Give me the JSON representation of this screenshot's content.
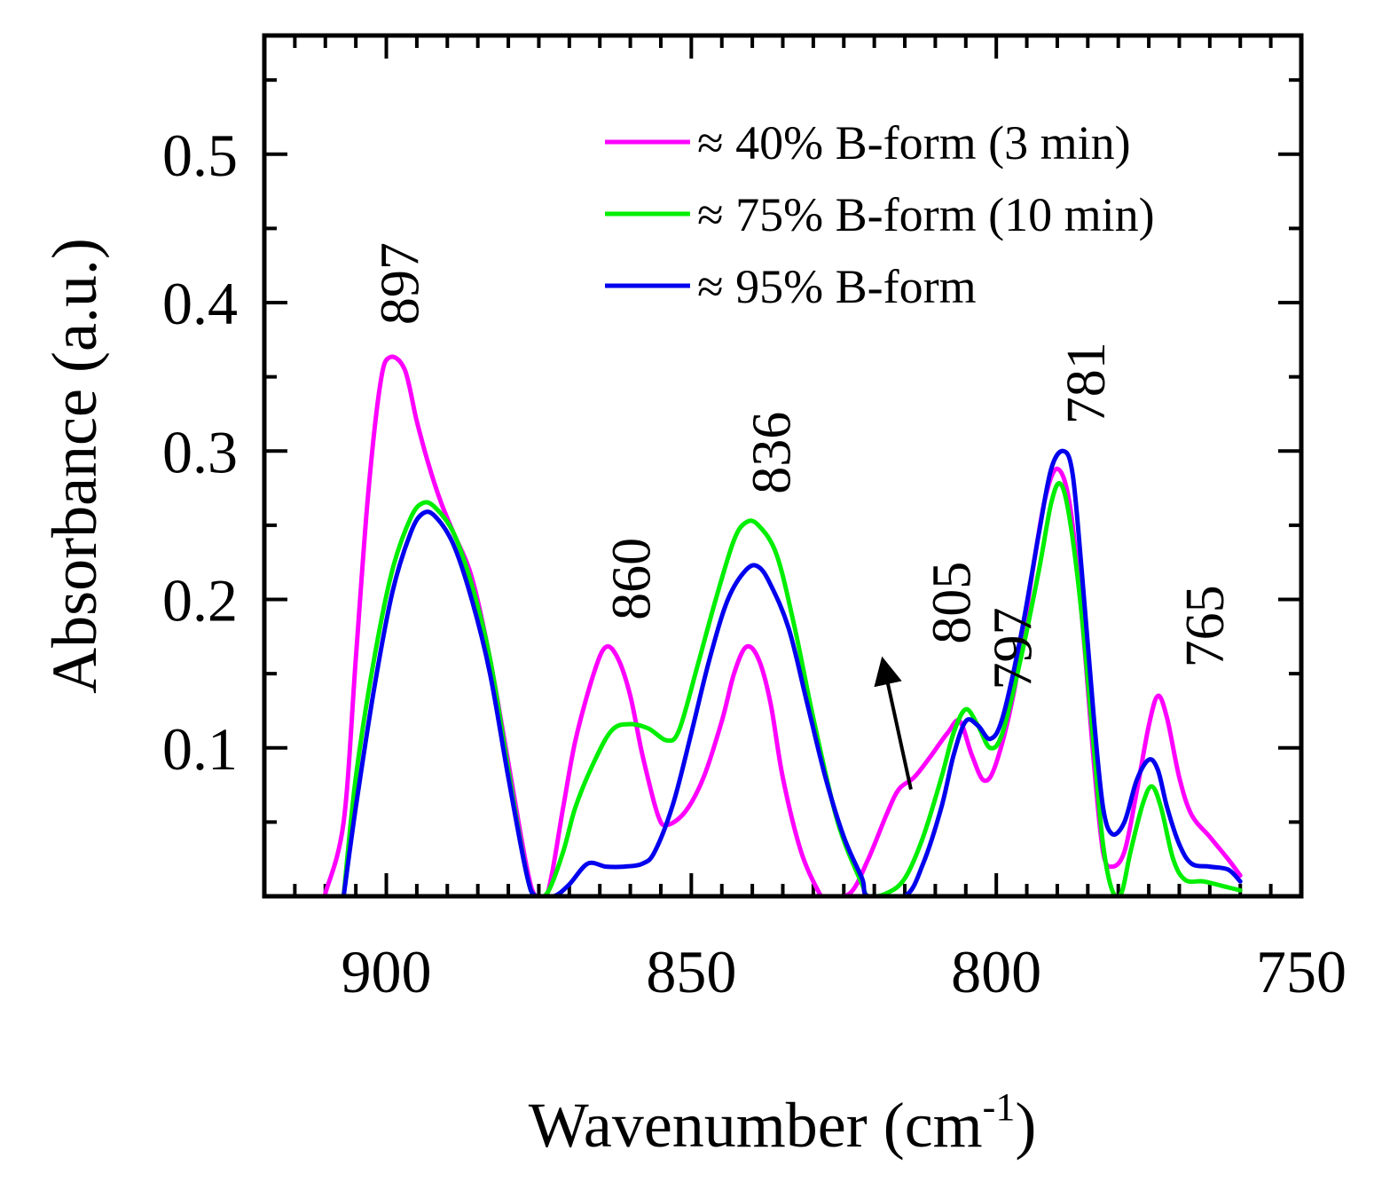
{
  "chart_data": {
    "type": "line",
    "title": "",
    "xlabel": "Wavenumber (cm",
    "xlabel_sup": "-1",
    "xlabel_close": ")",
    "ylabel": "Absorbance (a.u.)",
    "xlim": [
      920,
      750
    ],
    "ylim": [
      0,
      0.58
    ],
    "xticks": [
      900,
      850,
      800,
      750
    ],
    "xtick_labels": [
      "900",
      "850",
      "800",
      "750"
    ],
    "yticks": [
      0.1,
      0.2,
      0.3,
      0.4,
      0.5
    ],
    "ytick_labels": [
      "0.1",
      "0.2",
      "0.3",
      "0.4",
      "0.5"
    ],
    "legend_position": "top-right",
    "series": [
      {
        "name": "≈ 40% B-form (3 min)",
        "color": "#ff00ff",
        "points": [
          [
            910,
            0.002
          ],
          [
            907,
            0.05
          ],
          [
            905,
            0.16
          ],
          [
            903,
            0.27
          ],
          [
            901,
            0.345
          ],
          [
            899.5,
            0.363
          ],
          [
            897,
            0.355
          ],
          [
            895,
            0.32
          ],
          [
            893,
            0.29
          ],
          [
            891,
            0.265
          ],
          [
            889,
            0.245
          ],
          [
            886,
            0.215
          ],
          [
            883,
            0.16
          ],
          [
            880,
            0.09
          ],
          [
            877,
            0.02
          ],
          [
            875.5,
            0.0
          ],
          [
            873.5,
            0.003
          ],
          [
            871,
            0.06
          ],
          [
            869,
            0.105
          ],
          [
            866,
            0.15
          ],
          [
            864,
            0.168
          ],
          [
            862,
            0.16
          ],
          [
            860,
            0.135
          ],
          [
            858,
            0.095
          ],
          [
            855.5,
            0.055
          ],
          [
            854,
            0.048
          ],
          [
            851,
            0.057
          ],
          [
            848,
            0.08
          ],
          [
            845,
            0.118
          ],
          [
            843,
            0.15
          ],
          [
            841,
            0.168
          ],
          [
            839,
            0.16
          ],
          [
            837,
            0.13
          ],
          [
            835,
            0.08
          ],
          [
            832,
            0.03
          ],
          [
            829,
            0.002
          ],
          [
            828,
            0.0
          ],
          [
            824,
            0.002
          ],
          [
            821,
            0.025
          ],
          [
            818,
            0.055
          ],
          [
            816,
            0.072
          ],
          [
            813.5,
            0.08
          ],
          [
            811,
            0.093
          ],
          [
            808,
            0.11
          ],
          [
            806,
            0.118
          ],
          [
            804,
            0.095
          ],
          [
            802,
            0.078
          ],
          [
            800,
            0.09
          ],
          [
            797,
            0.14
          ],
          [
            794,
            0.22
          ],
          [
            792,
            0.268
          ],
          [
            790,
            0.288
          ],
          [
            788,
            0.265
          ],
          [
            786,
            0.19
          ],
          [
            784,
            0.09
          ],
          [
            782.5,
            0.03
          ],
          [
            781,
            0.02
          ],
          [
            779,
            0.03
          ],
          [
            777,
            0.07
          ],
          [
            775,
            0.115
          ],
          [
            773.5,
            0.135
          ],
          [
            772,
            0.12
          ],
          [
            770,
            0.08
          ],
          [
            768,
            0.055
          ],
          [
            765,
            0.04
          ],
          [
            762,
            0.025
          ],
          [
            760,
            0.014
          ]
        ]
      },
      {
        "name": "≈ 75% B-form (10 min)",
        "color": "#00ee00",
        "points": [
          [
            907,
            0.0
          ],
          [
            905,
            0.08
          ],
          [
            902,
            0.16
          ],
          [
            899,
            0.22
          ],
          [
            896,
            0.255
          ],
          [
            894,
            0.265
          ],
          [
            892,
            0.262
          ],
          [
            889,
            0.245
          ],
          [
            886,
            0.21
          ],
          [
            883,
            0.16
          ],
          [
            880,
            0.085
          ],
          [
            877,
            0.015
          ],
          [
            875.5,
            0.0
          ],
          [
            873.5,
            0.003
          ],
          [
            871,
            0.03
          ],
          [
            869,
            0.06
          ],
          [
            866,
            0.09
          ],
          [
            863,
            0.112
          ],
          [
            860,
            0.116
          ],
          [
            857,
            0.113
          ],
          [
            854,
            0.105
          ],
          [
            852,
            0.112
          ],
          [
            849,
            0.155
          ],
          [
            846,
            0.2
          ],
          [
            843,
            0.24
          ],
          [
            841,
            0.252
          ],
          [
            839,
            0.25
          ],
          [
            836,
            0.23
          ],
          [
            833,
            0.18
          ],
          [
            830,
            0.12
          ],
          [
            826,
            0.05
          ],
          [
            822,
            0.008
          ],
          [
            821,
            0.0
          ],
          [
            818,
            0.002
          ],
          [
            815,
            0.012
          ],
          [
            812,
            0.04
          ],
          [
            809,
            0.08
          ],
          [
            807,
            0.11
          ],
          [
            805,
            0.126
          ],
          [
            803,
            0.115
          ],
          [
            801,
            0.1
          ],
          [
            799,
            0.11
          ],
          [
            796,
            0.16
          ],
          [
            793,
            0.22
          ],
          [
            791,
            0.265
          ],
          [
            789.5,
            0.278
          ],
          [
            788,
            0.255
          ],
          [
            786,
            0.19
          ],
          [
            784,
            0.1
          ],
          [
            782.5,
            0.035
          ],
          [
            781,
            0.004
          ],
          [
            779.5,
            0.002
          ],
          [
            778,
            0.03
          ],
          [
            776,
            0.062
          ],
          [
            774.5,
            0.074
          ],
          [
            773,
            0.06
          ],
          [
            771,
            0.025
          ],
          [
            769,
            0.011
          ],
          [
            766,
            0.01
          ],
          [
            762,
            0.006
          ],
          [
            760,
            0.004
          ]
        ]
      },
      {
        "name": "≈ 95% B-form",
        "color": "#0000ee",
        "points": [
          [
            907,
            0.0
          ],
          [
            905,
            0.06
          ],
          [
            902,
            0.14
          ],
          [
            899,
            0.205
          ],
          [
            896,
            0.245
          ],
          [
            894,
            0.258
          ],
          [
            892,
            0.256
          ],
          [
            889,
            0.237
          ],
          [
            886,
            0.2
          ],
          [
            883,
            0.15
          ],
          [
            880,
            0.08
          ],
          [
            877,
            0.015
          ],
          [
            875.5,
            0.0
          ],
          [
            872.5,
            0.0
          ],
          [
            870,
            0.008
          ],
          [
            867,
            0.022
          ],
          [
            864,
            0.02
          ],
          [
            861,
            0.02
          ],
          [
            858,
            0.022
          ],
          [
            856,
            0.03
          ],
          [
            853,
            0.062
          ],
          [
            850,
            0.11
          ],
          [
            847,
            0.16
          ],
          [
            844,
            0.2
          ],
          [
            841,
            0.22
          ],
          [
            839,
            0.222
          ],
          [
            837,
            0.21
          ],
          [
            834,
            0.18
          ],
          [
            831,
            0.13
          ],
          [
            828,
            0.08
          ],
          [
            825,
            0.04
          ],
          [
            822,
            0.012
          ],
          [
            821,
            0.0
          ],
          [
            815,
            0.0
          ],
          [
            812,
            0.022
          ],
          [
            809,
            0.06
          ],
          [
            807,
            0.095
          ],
          [
            805,
            0.118
          ],
          [
            803,
            0.115
          ],
          [
            801,
            0.106
          ],
          [
            799,
            0.12
          ],
          [
            796,
            0.175
          ],
          [
            793,
            0.245
          ],
          [
            791,
            0.288
          ],
          [
            789,
            0.3
          ],
          [
            787.5,
            0.285
          ],
          [
            786,
            0.22
          ],
          [
            784,
            0.12
          ],
          [
            782.5,
            0.06
          ],
          [
            781,
            0.042
          ],
          [
            779,
            0.05
          ],
          [
            777,
            0.078
          ],
          [
            775,
            0.092
          ],
          [
            773.5,
            0.085
          ],
          [
            772,
            0.06
          ],
          [
            770,
            0.035
          ],
          [
            768,
            0.022
          ],
          [
            765,
            0.02
          ],
          [
            762,
            0.018
          ],
          [
            760,
            0.01
          ]
        ]
      }
    ],
    "peak_labels": [
      {
        "text": "897",
        "x": 898,
        "y": 0.385
      },
      {
        "text": "860",
        "x": 860,
        "y": 0.186
      },
      {
        "text": "836",
        "x": 837,
        "y": 0.271
      },
      {
        "text": "805",
        "x": 807.5,
        "y": 0.17
      },
      {
        "text": "797",
        "x": 797.5,
        "y": 0.139
      },
      {
        "text": "781",
        "x": 785.5,
        "y": 0.318
      },
      {
        "text": "765",
        "x": 766,
        "y": 0.154
      }
    ],
    "arrow": {
      "label": "805",
      "from": [
        814,
        0.072
      ],
      "to": [
        818.5,
        0.157
      ]
    }
  }
}
